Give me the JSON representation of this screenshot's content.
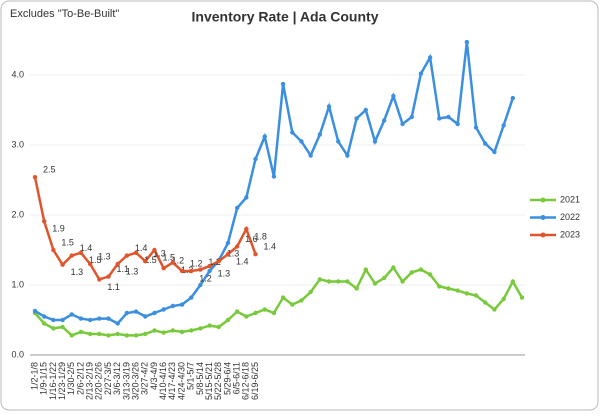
{
  "chart_data": {
    "type": "line",
    "title": "Inventory Rate | Ada County",
    "annotation": "Excludes \"To-Be-Built\"",
    "categories": [
      "1/2-1/8",
      "1/9-1/15",
      "1/16-1/22",
      "1/23-1/29",
      "1/30-2/5",
      "2/6-2/12",
      "2/13-2/19",
      "2/20-2/26",
      "2/27-3/5",
      "3/6-3/12",
      "3/13-3/19",
      "3/20-3/26",
      "3/27-4/2",
      "4/3-4/9",
      "4/10-4/16",
      "4/17-4/23",
      "4/24-4/30",
      "5/1-5/7",
      "5/8-5/14",
      "5/15-5/21",
      "5/22-5/28",
      "5/29-6/4",
      "6/5-6/11",
      "6/12-6/18",
      "6/19-6/25",
      null,
      null,
      null,
      null,
      null,
      null,
      null,
      null,
      null,
      null,
      null,
      null,
      null,
      null,
      null,
      null,
      null,
      null,
      null,
      null,
      null,
      null,
      null,
      null,
      null,
      null,
      null,
      null,
      null
    ],
    "series": [
      {
        "name": "2021",
        "color": "#79c93c",
        "values": [
          0.6,
          0.45,
          0.38,
          0.4,
          0.28,
          0.33,
          0.3,
          0.3,
          0.28,
          0.3,
          0.28,
          0.28,
          0.3,
          0.35,
          0.32,
          0.35,
          0.33,
          0.35,
          0.38,
          0.42,
          0.4,
          0.5,
          0.62,
          0.55,
          0.6,
          0.65,
          0.6,
          0.82,
          0.72,
          0.78,
          0.9,
          1.08,
          1.05,
          1.05,
          1.05,
          0.95,
          1.22,
          1.02,
          1.1,
          1.25,
          1.05,
          1.18,
          1.22,
          1.15,
          0.98,
          0.95,
          0.92,
          0.88,
          0.85,
          0.75,
          0.65,
          0.8,
          1.05,
          0.82
        ]
      },
      {
        "name": "2022",
        "color": "#3b8fe0",
        "values": [
          0.63,
          0.55,
          0.5,
          0.5,
          0.58,
          0.52,
          0.5,
          0.52,
          0.52,
          0.45,
          0.6,
          0.62,
          0.55,
          0.6,
          0.65,
          0.7,
          0.72,
          0.82,
          1.0,
          1.2,
          1.35,
          1.6,
          2.1,
          2.25,
          2.8,
          3.12,
          2.55,
          3.87,
          3.18,
          3.05,
          2.85,
          3.15,
          3.55,
          3.05,
          2.85,
          3.38,
          3.5,
          3.05,
          3.35,
          3.7,
          3.3,
          3.4,
          4.02,
          4.25,
          3.38,
          3.4,
          3.3,
          4.47,
          3.25,
          3.02,
          2.9,
          3.28,
          3.67,
          null
        ]
      },
      {
        "name": "2023",
        "color": "#e0562c",
        "values": [
          2.54,
          1.91,
          1.5,
          1.29,
          1.42,
          1.46,
          1.3,
          1.08,
          1.12,
          1.3,
          1.42,
          1.46,
          1.34,
          1.5,
          1.24,
          1.32,
          1.2,
          1.2,
          1.22,
          1.27,
          1.34,
          1.44,
          1.55,
          1.8,
          1.44,
          null,
          null,
          null,
          null,
          null,
          null,
          null,
          null,
          null,
          null,
          null,
          null,
          null,
          null,
          null,
          null,
          null,
          null,
          null,
          null,
          null,
          null,
          null,
          null,
          null,
          null,
          null,
          null,
          null
        ],
        "value_labels": [
          "2.5",
          "1.9",
          "1.5",
          "1.3",
          "1.4",
          "1.5",
          "1.3",
          "1.1",
          "1.1",
          "1.3",
          "1.4",
          "1.5",
          "1.3",
          "1.5",
          "1.2",
          "1.3",
          "1.2",
          "1.2",
          "1.2",
          "1.3",
          "1.3",
          "1.4",
          "1.6",
          "1.8",
          "1.4",
          null,
          null,
          null,
          null,
          null,
          null,
          null,
          null,
          null,
          null,
          null,
          null,
          null,
          null,
          null,
          null,
          null,
          null,
          null,
          null,
          null,
          null,
          null,
          null,
          null,
          null,
          null,
          null,
          null
        ]
      }
    ],
    "ylim": [
      0,
      4.5
    ],
    "yticks": [
      {
        "value": 0,
        "label": "0.0"
      },
      {
        "value": 1,
        "label": "1.0"
      },
      {
        "value": 2,
        "label": "2.0"
      },
      {
        "value": 3,
        "label": "3.0"
      },
      {
        "value": 4,
        "label": "4.0"
      }
    ],
    "grid": true,
    "legend": "right"
  }
}
